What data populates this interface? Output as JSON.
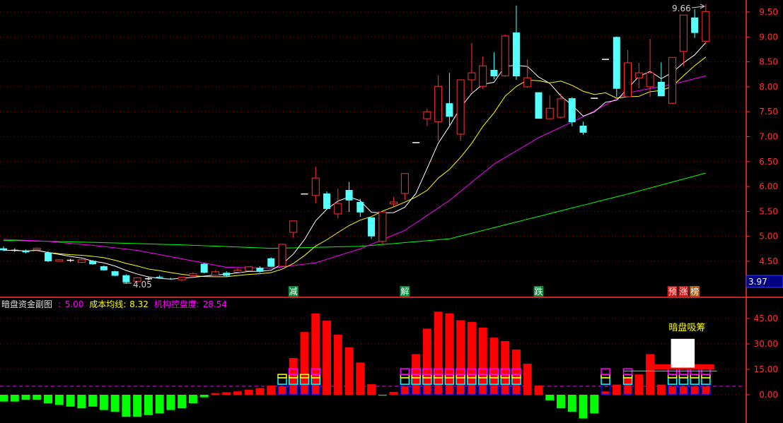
{
  "colors": {
    "up": "#ff3232",
    "down": "#54ffff",
    "flat": "#ffffff",
    "ma5": "#ffffff",
    "ma10": "#ffff00",
    "ma20": "#ff00ff",
    "ma60": "#00ff00",
    "axis": "#ff3232",
    "grid": "#a00000",
    "bg": "#000000"
  },
  "chart_data": [
    {
      "type": "candlestick",
      "ylim": [
        3.9,
        9.75
      ],
      "y_ticks": [
        "9.50",
        "9.00",
        "8.50",
        "8.00",
        "7.50",
        "7.00",
        "6.50",
        "6.00",
        "5.50",
        "5.00",
        "4.50"
      ],
      "grid": true,
      "ohlc": [
        [
          4.76,
          4.8,
          4.7,
          4.72
        ],
        [
          4.72,
          4.76,
          4.69,
          4.72
        ],
        [
          4.71,
          4.74,
          4.66,
          4.68
        ],
        [
          4.73,
          4.78,
          4.72,
          4.76
        ],
        [
          4.67,
          4.7,
          4.48,
          4.5
        ],
        [
          4.5,
          4.54,
          4.49,
          4.53
        ],
        [
          4.52,
          4.55,
          4.49,
          4.52
        ],
        [
          4.48,
          4.55,
          4.46,
          4.53
        ],
        [
          4.51,
          4.53,
          4.43,
          4.44
        ],
        [
          4.4,
          4.42,
          4.31,
          4.32
        ],
        [
          4.3,
          4.31,
          4.2,
          4.21
        ],
        [
          4.22,
          4.24,
          4.05,
          4.08
        ],
        [
          4.1,
          4.18,
          4.08,
          4.17
        ],
        [
          4.15,
          4.18,
          4.12,
          4.15
        ],
        [
          4.19,
          4.22,
          4.16,
          4.17
        ],
        [
          4.15,
          4.17,
          4.13,
          4.14
        ],
        [
          4.13,
          4.19,
          4.11,
          4.18
        ],
        [
          4.21,
          4.28,
          4.2,
          4.25
        ],
        [
          4.45,
          4.47,
          4.26,
          4.27
        ],
        [
          4.22,
          4.32,
          4.21,
          4.29
        ],
        [
          4.27,
          4.3,
          4.19,
          4.21
        ],
        [
          4.28,
          4.36,
          4.27,
          4.32
        ],
        [
          4.31,
          4.4,
          4.3,
          4.39
        ],
        [
          4.37,
          4.4,
          4.27,
          4.29
        ],
        [
          4.56,
          4.58,
          4.38,
          4.39
        ],
        [
          4.4,
          4.85,
          4.4,
          4.84
        ],
        [
          5.08,
          5.31,
          4.97,
          5.31
        ],
        [
          5.85,
          5.85,
          5.85,
          5.85
        ],
        [
          5.82,
          6.4,
          5.66,
          6.17
        ],
        [
          5.86,
          5.9,
          5.55,
          5.55
        ],
        [
          5.45,
          5.96,
          5.36,
          5.66
        ],
        [
          5.93,
          6.09,
          5.49,
          5.72
        ],
        [
          5.69,
          5.75,
          5.39,
          5.48
        ],
        [
          5.38,
          5.38,
          4.95,
          5.0
        ],
        [
          4.9,
          5.5,
          4.85,
          5.49
        ],
        [
          5.65,
          5.79,
          5.6,
          5.69
        ],
        [
          5.86,
          6.26,
          5.73,
          6.26
        ],
        [
          6.88,
          6.88,
          6.88,
          6.88
        ],
        [
          7.36,
          7.56,
          7.21,
          7.5
        ],
        [
          7.3,
          8.23,
          6.91,
          8.01
        ],
        [
          7.67,
          8.28,
          7.23,
          7.4
        ],
        [
          7.05,
          8.15,
          6.92,
          8.14
        ],
        [
          8.14,
          8.88,
          7.9,
          8.28
        ],
        [
          8.01,
          8.61,
          7.95,
          8.42
        ],
        [
          8.34,
          8.69,
          8.15,
          8.21
        ],
        [
          8.22,
          9.05,
          8.2,
          9.02
        ],
        [
          9.09,
          9.63,
          8.14,
          8.21
        ],
        [
          8.0,
          8.55,
          7.98,
          8.18
        ],
        [
          7.89,
          7.89,
          7.36,
          7.36
        ],
        [
          7.36,
          7.83,
          7.36,
          7.57
        ],
        [
          7.39,
          7.87,
          7.36,
          7.76
        ],
        [
          7.77,
          7.79,
          7.21,
          7.29
        ],
        [
          7.22,
          7.3,
          7.04,
          7.08
        ],
        [
          7.77,
          7.77,
          7.77,
          7.77
        ],
        [
          8.55,
          8.55,
          8.55,
          8.55
        ],
        [
          9.0,
          9.01,
          7.8,
          7.96
        ],
        [
          7.8,
          8.74,
          7.8,
          8.48
        ],
        [
          8.18,
          8.48,
          7.97,
          8.28
        ],
        [
          8.0,
          8.96,
          7.8,
          8.28
        ],
        [
          8.1,
          8.49,
          7.81,
          7.81
        ],
        [
          7.67,
          8.59,
          7.66,
          8.59
        ],
        [
          8.71,
          9.44,
          8.41,
          9.44
        ],
        [
          9.39,
          9.56,
          8.98,
          9.08
        ],
        [
          8.91,
          9.66,
          8.85,
          9.51
        ]
      ],
      "ma20_samples": {
        "index": [
          0,
          4,
          8,
          12,
          16,
          20,
          24,
          28,
          32,
          36,
          40,
          44,
          48,
          52,
          56,
          60,
          63
        ],
        "values": [
          4.94,
          4.9,
          4.82,
          4.72,
          4.55,
          4.38,
          4.36,
          4.47,
          4.75,
          5.12,
          5.72,
          6.45,
          6.98,
          7.4,
          7.88,
          8.05,
          8.22
        ]
      },
      "ma60_samples": {
        "index": [
          0,
          8,
          16,
          24,
          32,
          40,
          48,
          56,
          63
        ],
        "values": [
          4.92,
          4.88,
          4.83,
          4.76,
          4.8,
          4.95,
          5.4,
          5.85,
          6.27
        ]
      },
      "annotations": {
        "low_label": "4.05",
        "high_label": "9.66",
        "cursor_price": "3.97"
      },
      "signals": [
        {
          "index": 26,
          "text": "减",
          "color": "#0a8a3a"
        },
        {
          "index": 36,
          "text": "解",
          "color": "#0a8a3a"
        },
        {
          "index": 48,
          "text": "跌",
          "color": "#0a8a3a"
        },
        {
          "index": 60,
          "text": "预",
          "color": "#d01818"
        },
        {
          "index": 61,
          "text": "涨",
          "color": "#d01818"
        },
        {
          "index": 62,
          "text": "榜",
          "color": "#b05a10"
        }
      ]
    },
    {
      "type": "bar",
      "title": "暗盘资金副图",
      "ylim": [
        -17,
        50
      ],
      "y_ticks": [
        "45.00",
        "30.00",
        "15.00",
        "0.00"
      ],
      "values": [
        -4,
        -4,
        -3,
        -3,
        -5,
        -6,
        -7,
        -8,
        -7,
        -9,
        -10,
        -13,
        -13,
        -12,
        -11,
        -9,
        -8,
        -5,
        -1.5,
        1,
        1.5,
        2,
        3,
        4,
        5.4,
        5,
        21.7,
        37,
        48,
        43.7,
        35.4,
        28,
        19,
        6.2,
        -0.5,
        1.7,
        5,
        24,
        39,
        49,
        48,
        44,
        43,
        39.6,
        33.7,
        31.7,
        26.7,
        18.3,
        5.4,
        -3.3,
        -8,
        -10,
        -14,
        -11,
        2,
        6,
        10,
        12,
        24,
        6,
        5,
        5,
        5,
        5
      ],
      "box_indices": [
        25,
        26,
        27,
        28,
        36,
        37,
        38,
        39,
        40,
        41,
        42,
        43,
        44,
        45,
        46,
        54,
        56,
        60,
        61,
        62,
        63
      ],
      "box_magenta_indices": [
        26,
        28,
        36,
        37,
        38,
        39,
        40,
        41,
        42,
        43,
        44,
        45,
        46,
        54,
        56,
        60,
        61,
        62,
        63
      ],
      "box_levels": [
        6.2,
        10,
        12,
        15.4
      ],
      "dash_level": 5.0,
      "absorb_box": {
        "from": 16,
        "to": 33,
        "label": "暗盘吸筹"
      },
      "legend": {
        "title": "暗盘资金副图",
        "sep": ":",
        "value": "5.00",
        "cost_label": "成本均线:",
        "cost_value": "8.32",
        "control_label": "机构控盘度:",
        "control_value": "28.54"
      }
    }
  ]
}
